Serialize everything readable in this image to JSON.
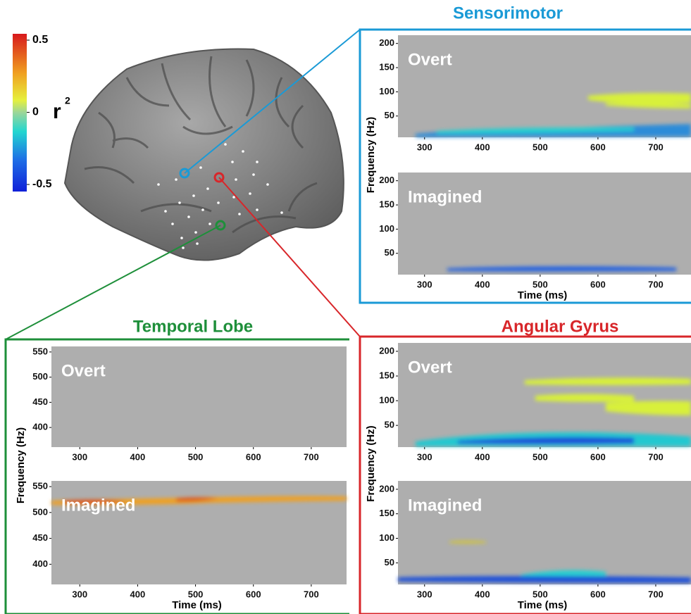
{
  "colorbar": {
    "label": "r",
    "label_sup": "2",
    "lim": [
      -0.5,
      0.5
    ],
    "ticks": [
      0.5,
      0,
      -0.5
    ]
  },
  "panels": [
    {
      "title": "Sensorimotor",
      "color": "#1a9ad6",
      "y_label": "Frequency (Hz)",
      "x_label": "Time (ms)",
      "xlim": [
        254,
        761
      ],
      "xticks": [
        300,
        400,
        500,
        600,
        700
      ],
      "ylim": [
        6,
        217
      ],
      "yticks": [
        50,
        100,
        150,
        200
      ],
      "subplots": [
        {
          "label": "Overt"
        },
        {
          "label": "Imagined"
        }
      ]
    },
    {
      "title": "Temporal Lobe",
      "color": "#1e8f3a",
      "y_label": "Frequency (Hz)",
      "x_label": "Time (ms)",
      "xlim": [
        251,
        761
      ],
      "xticks": [
        300,
        400,
        500,
        600,
        700
      ],
      "ylim": [
        361,
        561
      ],
      "yticks": [
        400,
        450,
        500,
        550
      ],
      "subplots": [
        {
          "label": "Overt"
        },
        {
          "label": "Imagined"
        }
      ]
    },
    {
      "title": "Angular Gyrus",
      "color": "#d8262a",
      "y_label": "Frequency (Hz)",
      "x_label": "Time (ms)",
      "xlim": [
        254,
        761
      ],
      "xticks": [
        300,
        400,
        500,
        600,
        700
      ],
      "ylim": [
        6,
        217
      ],
      "yticks": [
        50,
        100,
        150,
        200
      ],
      "subplots": [
        {
          "label": "Overt"
        },
        {
          "label": "Imagined"
        }
      ]
    }
  ]
}
